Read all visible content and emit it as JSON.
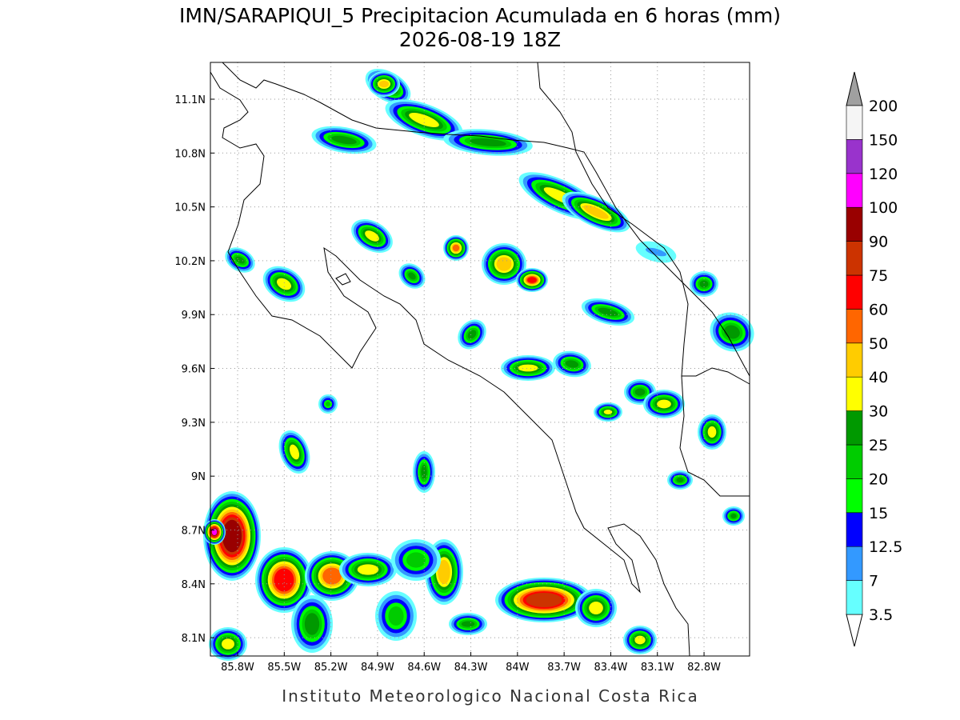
{
  "map": {
    "title": "IMN/SARAPIQUI_5 Precipitacion Acumulada en 6 horas (mm)",
    "subtitle": "2026-08-19 18Z",
    "lonlim": [
      -85.975,
      -82.507
    ],
    "latlim": [
      7.998,
      11.305
    ],
    "lon_ticks": [
      {
        "value": -85.8,
        "label": "85.8W"
      },
      {
        "value": -85.5,
        "label": "85.5W"
      },
      {
        "value": -85.2,
        "label": "85.2W"
      },
      {
        "value": -84.9,
        "label": "84.9W"
      },
      {
        "value": -84.6,
        "label": "84.6W"
      },
      {
        "value": -84.3,
        "label": "84.3W"
      },
      {
        "value": -84.0,
        "label": "84W"
      },
      {
        "value": -83.7,
        "label": "83.7W"
      },
      {
        "value": -83.4,
        "label": "83.4W"
      },
      {
        "value": -83.1,
        "label": "83.1W"
      },
      {
        "value": -82.8,
        "label": "82.8W"
      }
    ],
    "lat_ticks": [
      {
        "value": 11.1,
        "label": "11.1N"
      },
      {
        "value": 10.8,
        "label": "10.8N"
      },
      {
        "value": 10.5,
        "label": "10.5N"
      },
      {
        "value": 10.2,
        "label": "10.2N"
      },
      {
        "value": 9.9,
        "label": "9.9N"
      },
      {
        "value": 9.6,
        "label": "9.6N"
      },
      {
        "value": 9.3,
        "label": "9.3N"
      },
      {
        "value": 9.0,
        "label": "9N"
      },
      {
        "value": 8.7,
        "label": "8.7N"
      },
      {
        "value": 8.4,
        "label": "8.4N"
      },
      {
        "value": 8.1,
        "label": "8.1N"
      }
    ],
    "grid": true,
    "colorbar": {
      "levels": [
        3.5,
        7,
        12.5,
        15,
        20,
        25,
        30,
        40,
        50,
        60,
        75,
        90,
        100,
        120,
        150,
        200
      ],
      "colors": [
        "#66ffff",
        "#3399ff",
        "#0000ff",
        "#00ff00",
        "#00cc00",
        "#009900",
        "#ffff00",
        "#ffcc00",
        "#ff6600",
        "#ff0000",
        "#cc3300",
        "#990000",
        "#ff00ff",
        "#9933cc",
        "#f5f5f5"
      ],
      "under_color": "#ffffff",
      "over_color": "#a0a0a0"
    }
  },
  "footer": "Instituto Meteorologico Nacional Costa Rica"
}
